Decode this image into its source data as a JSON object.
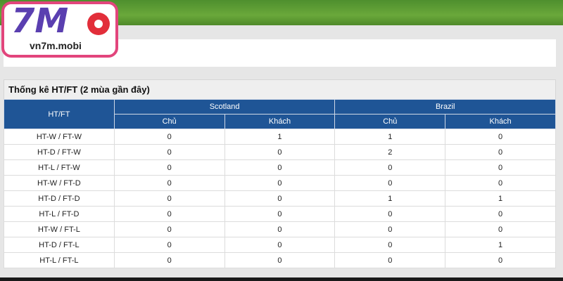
{
  "logo": {
    "mark": "7M",
    "site": "vn7m.mobi"
  },
  "table": {
    "title": "Thống kê HT/FT (2 mùa gần đây)",
    "row_header": "HT/FT",
    "teams": [
      "Scotland",
      "Brazil"
    ],
    "sub_headers": [
      "Chủ",
      "Khách",
      "Chủ",
      "Khách"
    ],
    "rows": [
      [
        "HT-W / FT-W",
        0,
        1,
        1,
        0
      ],
      [
        "HT-D / FT-W",
        0,
        0,
        2,
        0
      ],
      [
        "HT-L / FT-W",
        0,
        0,
        0,
        0
      ],
      [
        "HT-W / FT-D",
        0,
        0,
        0,
        0
      ],
      [
        "HT-D / FT-D",
        0,
        0,
        1,
        1
      ],
      [
        "HT-L / FT-D",
        0,
        0,
        0,
        0
      ],
      [
        "HT-W / FT-L",
        0,
        0,
        0,
        0
      ],
      [
        "HT-D / FT-L",
        0,
        0,
        0,
        1
      ],
      [
        "HT-L / FT-L",
        0,
        0,
        0,
        0
      ]
    ]
  }
}
